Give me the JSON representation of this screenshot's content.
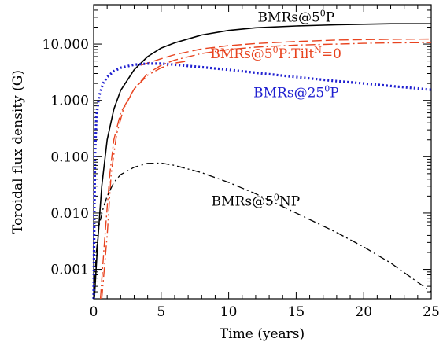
{
  "chart_data": {
    "type": "line",
    "xlabel": "Time (years)",
    "ylabel": "Toroidal flux density (G)",
    "xlim": [
      0,
      25
    ],
    "ylim": [
      0.0003,
      50
    ],
    "yscale": "log",
    "xticks": [
      {
        "value": 0,
        "label": "0"
      },
      {
        "value": 5,
        "label": "5"
      },
      {
        "value": 10,
        "label": "10"
      },
      {
        "value": 15,
        "label": "15"
      },
      {
        "value": 20,
        "label": "20"
      },
      {
        "value": 25,
        "label": "25"
      }
    ],
    "yticks": [
      {
        "value": 0.001,
        "label": "0.001"
      },
      {
        "value": 0.01,
        "label": "0.010"
      },
      {
        "value": 0.1,
        "label": "0.100"
      },
      {
        "value": 1,
        "label": "1.000"
      },
      {
        "value": 10,
        "label": "10.000"
      }
    ],
    "colors": {
      "black": "#000000",
      "red": "#e8431f",
      "blue": "#1f1fd0"
    },
    "series": [
      {
        "key": "bmr5p",
        "color": "#000000",
        "dash": "",
        "width": 1.6,
        "points": [
          [
            0.05,
            0.0003
          ],
          [
            0.3,
            0.003
          ],
          [
            0.6,
            0.03
          ],
          [
            1,
            0.2
          ],
          [
            1.5,
            0.7
          ],
          [
            2,
            1.5
          ],
          [
            3,
            3.5
          ],
          [
            4,
            6
          ],
          [
            5,
            8.5
          ],
          [
            6,
            10.5
          ],
          [
            8,
            14.5
          ],
          [
            10,
            17.5
          ],
          [
            12,
            19.5
          ],
          [
            15,
            21
          ],
          [
            18,
            22
          ],
          [
            20,
            22.5
          ],
          [
            22,
            23
          ],
          [
            25,
            23
          ]
        ]
      },
      {
        "key": "bmr5p_dash",
        "color": "#e8431f",
        "dash": "12,5",
        "width": 1.4,
        "points": [
          [
            3.5,
            4.2
          ],
          [
            4,
            4.6
          ],
          [
            5,
            5.5
          ],
          [
            6,
            6.5
          ],
          [
            8,
            8.2
          ],
          [
            10,
            9.4
          ],
          [
            12,
            10.2
          ],
          [
            15,
            11.1
          ],
          [
            18,
            11.8
          ],
          [
            20,
            12
          ],
          [
            22,
            12.2
          ],
          [
            25,
            12.3
          ]
        ]
      },
      {
        "key": "bmr5p_tilt0",
        "color": "#e8431f",
        "dash": "12,4,2,4",
        "width": 1.4,
        "points": [
          [
            0.5,
            0.0003
          ],
          [
            0.8,
            0.003
          ],
          [
            1.2,
            0.05
          ],
          [
            1.5,
            0.2
          ],
          [
            2,
            0.6
          ],
          [
            3,
            1.6
          ],
          [
            4,
            3
          ],
          [
            5,
            4.2
          ],
          [
            6,
            5.2
          ],
          [
            8,
            6.8
          ],
          [
            10,
            8
          ],
          [
            12,
            8.8
          ],
          [
            15,
            9.6
          ],
          [
            18,
            10
          ],
          [
            20,
            10.3
          ],
          [
            22,
            10.5
          ],
          [
            25,
            10.6
          ]
        ]
      },
      {
        "key": "bmr5p_tilt0_b",
        "color": "#e8431f",
        "dash": "12,4,2,4,2,4",
        "width": 1.4,
        "points": [
          [
            0.6,
            0.0003
          ],
          [
            1,
            0.004
          ],
          [
            1.3,
            0.05
          ],
          [
            1.7,
            0.25
          ],
          [
            2.2,
            0.7
          ],
          [
            3,
            1.6
          ],
          [
            4,
            2.8
          ],
          [
            5,
            3.8
          ],
          [
            6,
            4.6
          ],
          [
            7,
            5
          ]
        ]
      },
      {
        "key": "bmr25p",
        "color": "#1f1fd0",
        "dash": "2,3",
        "width": 3.2,
        "points": [
          [
            0,
            0.0003
          ],
          [
            0.05,
            0.01
          ],
          [
            0.1,
            0.1
          ],
          [
            0.2,
            0.5
          ],
          [
            0.4,
            1.2
          ],
          [
            0.7,
            2
          ],
          [
            1,
            2.6
          ],
          [
            1.5,
            3.3
          ],
          [
            2,
            3.8
          ],
          [
            3,
            4.3
          ],
          [
            4,
            4.5
          ],
          [
            5,
            4.5
          ],
          [
            6,
            4.3
          ],
          [
            8,
            3.9
          ],
          [
            10,
            3.5
          ],
          [
            12,
            3.1
          ],
          [
            15,
            2.6
          ],
          [
            18,
            2.2
          ],
          [
            20,
            2
          ],
          [
            22,
            1.8
          ],
          [
            25,
            1.55
          ]
        ]
      },
      {
        "key": "bmr5np",
        "color": "#000000",
        "dash": "10,4,2,4",
        "width": 1.3,
        "points": [
          [
            0,
            0.0003
          ],
          [
            0.2,
            0.002
          ],
          [
            0.4,
            0.006
          ],
          [
            0.7,
            0.012
          ],
          [
            1,
            0.02
          ],
          [
            1.5,
            0.035
          ],
          [
            2,
            0.048
          ],
          [
            3,
            0.065
          ],
          [
            4,
            0.076
          ],
          [
            5,
            0.077
          ],
          [
            6,
            0.07
          ],
          [
            8,
            0.052
          ],
          [
            10,
            0.035
          ],
          [
            12,
            0.022
          ],
          [
            15,
            0.01
          ],
          [
            18,
            0.0045
          ],
          [
            20,
            0.0025
          ],
          [
            22,
            0.0013
          ],
          [
            25,
            0.0004
          ]
        ]
      }
    ],
    "annotations": [
      {
        "key": "bmr5p",
        "base": "BMRs@5",
        "sup": "0",
        "tail": "P",
        "sup2": "",
        "tail2": "",
        "x": 15,
        "y": 25,
        "color": "#000000"
      },
      {
        "key": "bmr5p_tilt0",
        "base": "BMRs@5",
        "sup": "0",
        "tail": "P:Tilt",
        "sup2": "N",
        "tail2": "=0",
        "x": 13.5,
        "y": 5.6,
        "color": "#e8431f"
      },
      {
        "key": "bmr25p",
        "base": "BMRs@25",
        "sup": "0",
        "tail": "P",
        "sup2": "",
        "tail2": "",
        "x": 15,
        "y": 1.15,
        "color": "#1f1fd0"
      },
      {
        "key": "bmr5np",
        "base": "BMRs@5",
        "sup": "0",
        "tail": "NP",
        "sup2": "",
        "tail2": "",
        "x": 12,
        "y": 0.0135,
        "color": "#000000"
      }
    ]
  }
}
